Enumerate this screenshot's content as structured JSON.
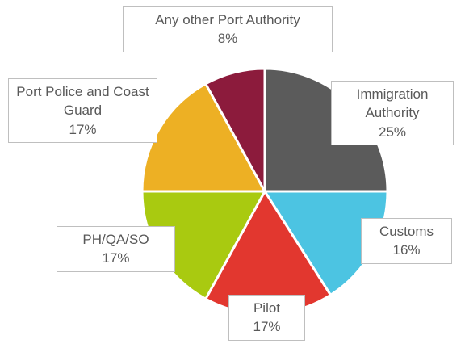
{
  "chart_data": {
    "type": "pie",
    "categories": [
      "Immigration Authority",
      "Customs",
      "Pilot",
      "PH/QA/SO",
      "Port Police and Coast Guard",
      "Any other Port Authority"
    ],
    "values": [
      25,
      16,
      17,
      17,
      17,
      8
    ],
    "value_labels": [
      "25%",
      "16%",
      "17%",
      "17%",
      "17%",
      "8%"
    ],
    "colors": [
      "#5b5b5b",
      "#4cc4e2",
      "#e2372f",
      "#a9ca10",
      "#edb024",
      "#8c1b3c"
    ]
  }
}
